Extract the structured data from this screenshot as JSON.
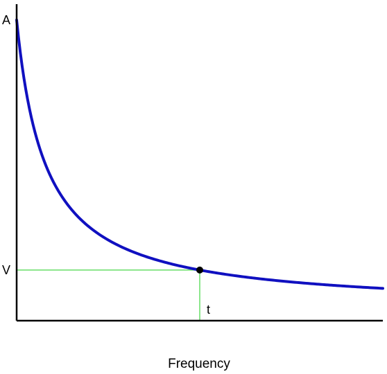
{
  "chart_data": {
    "type": "line",
    "title": "",
    "xlabel": "Frequency",
    "ylabel": "",
    "grid": false,
    "legend": "none",
    "xlim": [
      0,
      10
    ],
    "ylim": [
      0,
      10
    ],
    "y_tick_labels": [
      {
        "value": 9.5,
        "label": "A"
      },
      {
        "value": 1.6,
        "label": "V"
      }
    ],
    "series": [
      {
        "color": "#1010c0",
        "x": [
          0,
          0.1,
          0.25,
          0.5,
          0.75,
          1,
          1.5,
          2,
          2.5,
          3,
          3.5,
          4,
          4.5,
          5,
          6,
          7,
          8,
          9,
          10
        ],
        "y": [
          9.5,
          8.45,
          7.28,
          5.98,
          5.06,
          4.38,
          3.48,
          2.88,
          2.46,
          2.15,
          1.91,
          1.72,
          1.57,
          1.6,
          1.32,
          1.15,
          1.01,
          0.9,
          0.9
        ]
      }
    ],
    "marker": {
      "x": 5,
      "y": 1.6,
      "color": "#000000"
    },
    "guide_lines": {
      "color": "#66dd66"
    },
    "annotation": {
      "x": 5,
      "y": 0.35,
      "label": "t"
    }
  }
}
